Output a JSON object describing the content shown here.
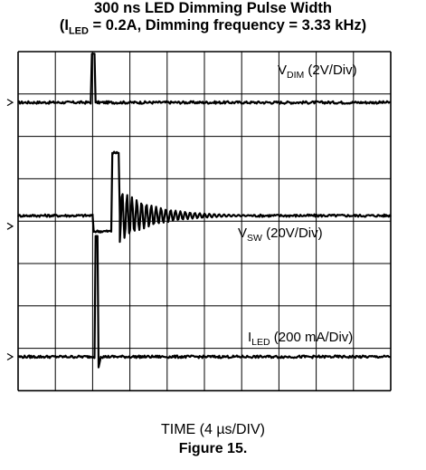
{
  "chart_data": {
    "type": "line",
    "title": "300 ns LED Dimming Pulse Width",
    "subtitle": {
      "prefix": "(I",
      "sub": "LED",
      "rest": " = 0.2A, Dimming frequency = 3.33 kHz)"
    },
    "xlabel": "TIME (4 µs/DIV)",
    "caption": "Figure 15.",
    "grid": true,
    "divisions": {
      "x": 10,
      "y": 8
    },
    "x_scale_us_per_div": 4,
    "series": [
      {
        "label": {
          "main": "V",
          "sub": "DIM",
          "rest": " (2V/Div)"
        },
        "scale": "2V/Div",
        "ground_div": 1.2,
        "points": [
          [
            0,
            0
          ],
          [
            1.95,
            0
          ],
          [
            1.98,
            1.15
          ],
          [
            2.05,
            1.15
          ],
          [
            2.08,
            0
          ],
          [
            10,
            0
          ]
        ]
      },
      {
        "label": {
          "main": "V",
          "sub": "SW",
          "rest": " (20V/Div)"
        },
        "scale": "20V/Div",
        "ground_div": 4.12,
        "points": [
          [
            0,
            0.25
          ],
          [
            2.0,
            0.25
          ],
          [
            2.03,
            -0.12
          ],
          [
            2.5,
            -0.12
          ],
          [
            2.53,
            1.73
          ],
          [
            2.7,
            1.73
          ],
          [
            2.73,
            0.25
          ],
          [
            10,
            0.25
          ]
        ],
        "ringing": {
          "start_div": 2.73,
          "end_div": 6.2,
          "initial_amplitude_div": 0.62,
          "period_div": 0.13,
          "decay_div": 0.9
        }
      },
      {
        "label": {
          "main": "I",
          "sub": "LED",
          "rest": " (200 mA/Div)"
        },
        "scale": "200 mA/Div",
        "ground_div": 7.2,
        "points": [
          [
            0,
            0
          ],
          [
            2.05,
            0
          ],
          [
            2.08,
            2.85
          ],
          [
            2.13,
            2.85
          ],
          [
            2.16,
            -0.25
          ],
          [
            2.22,
            0
          ],
          [
            10,
            0
          ]
        ]
      }
    ]
  }
}
